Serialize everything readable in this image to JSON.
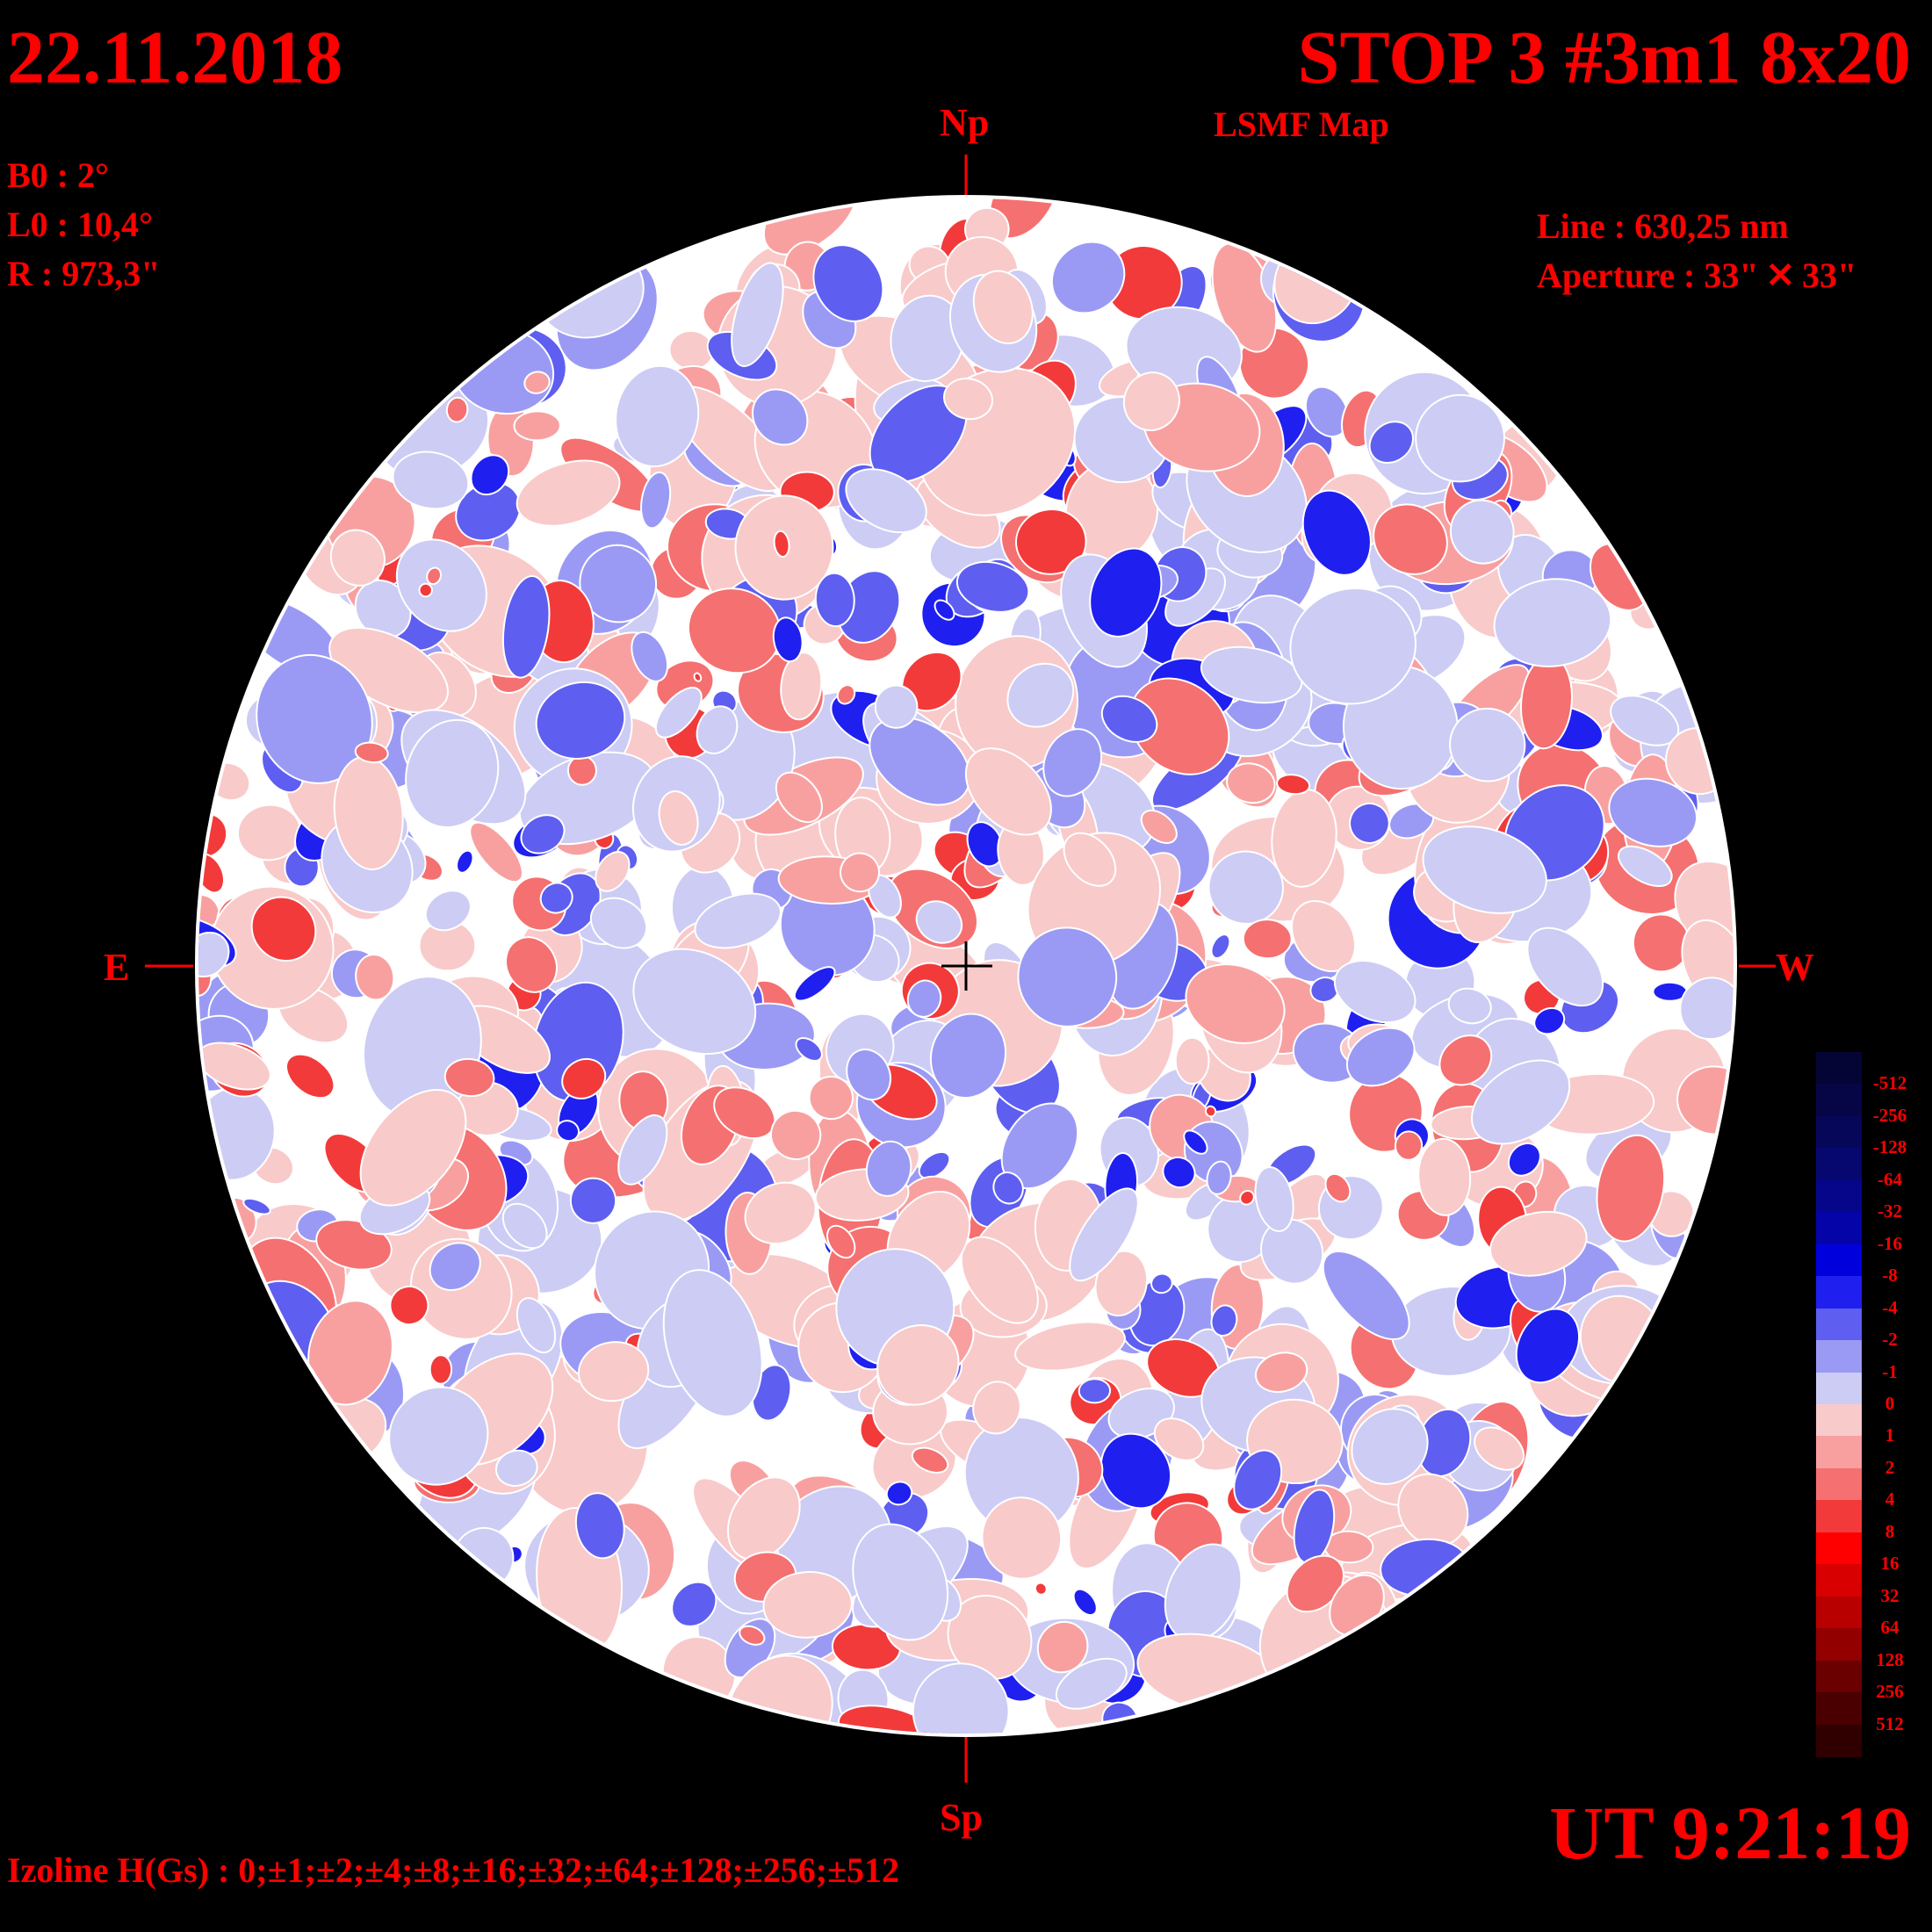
{
  "header": {
    "date": "22.11.2018",
    "title": "STOP 3 #3m1 8x20",
    "subtitle": "LSMF  Map"
  },
  "params": {
    "b0": "B0 : 2°",
    "l0": "L0 : 10,4°",
    "r": "R  : 973,3\"",
    "line": "Line :  630,25 nm",
    "aperture": "Aperture : 33\" ✕ 33\""
  },
  "compass": {
    "north": "Np",
    "south": "Sp",
    "east": "E",
    "west": "W"
  },
  "footer": {
    "time": "UT 9:21:19",
    "izoline": "Izoline H(Gs) : 0;±1;±2;±4;±8;±16;±32;±64;±128;±256;±512"
  },
  "colorbar": {
    "labels": [
      "-512",
      "-256",
      "-128",
      "-64",
      "-32",
      "-16",
      "-8",
      "-4",
      "-2",
      "-1",
      "0",
      "1",
      "2",
      "4",
      "8",
      "16",
      "32",
      "64",
      "128",
      "256",
      "512"
    ],
    "colors": [
      "#050535",
      "#060646",
      "#07075a",
      "#070770",
      "#06068a",
      "#0404a8",
      "#0000dd",
      "#1f1ff0",
      "#5e5ef0",
      "#9a9af5",
      "#ccccf5",
      "#f9caca",
      "#f8a0a0",
      "#f57070",
      "#f23a3a",
      "#ff0000",
      "#d80000",
      "#b80000",
      "#920000",
      "#6a0000",
      "#4a0000",
      "#300000"
    ]
  }
}
